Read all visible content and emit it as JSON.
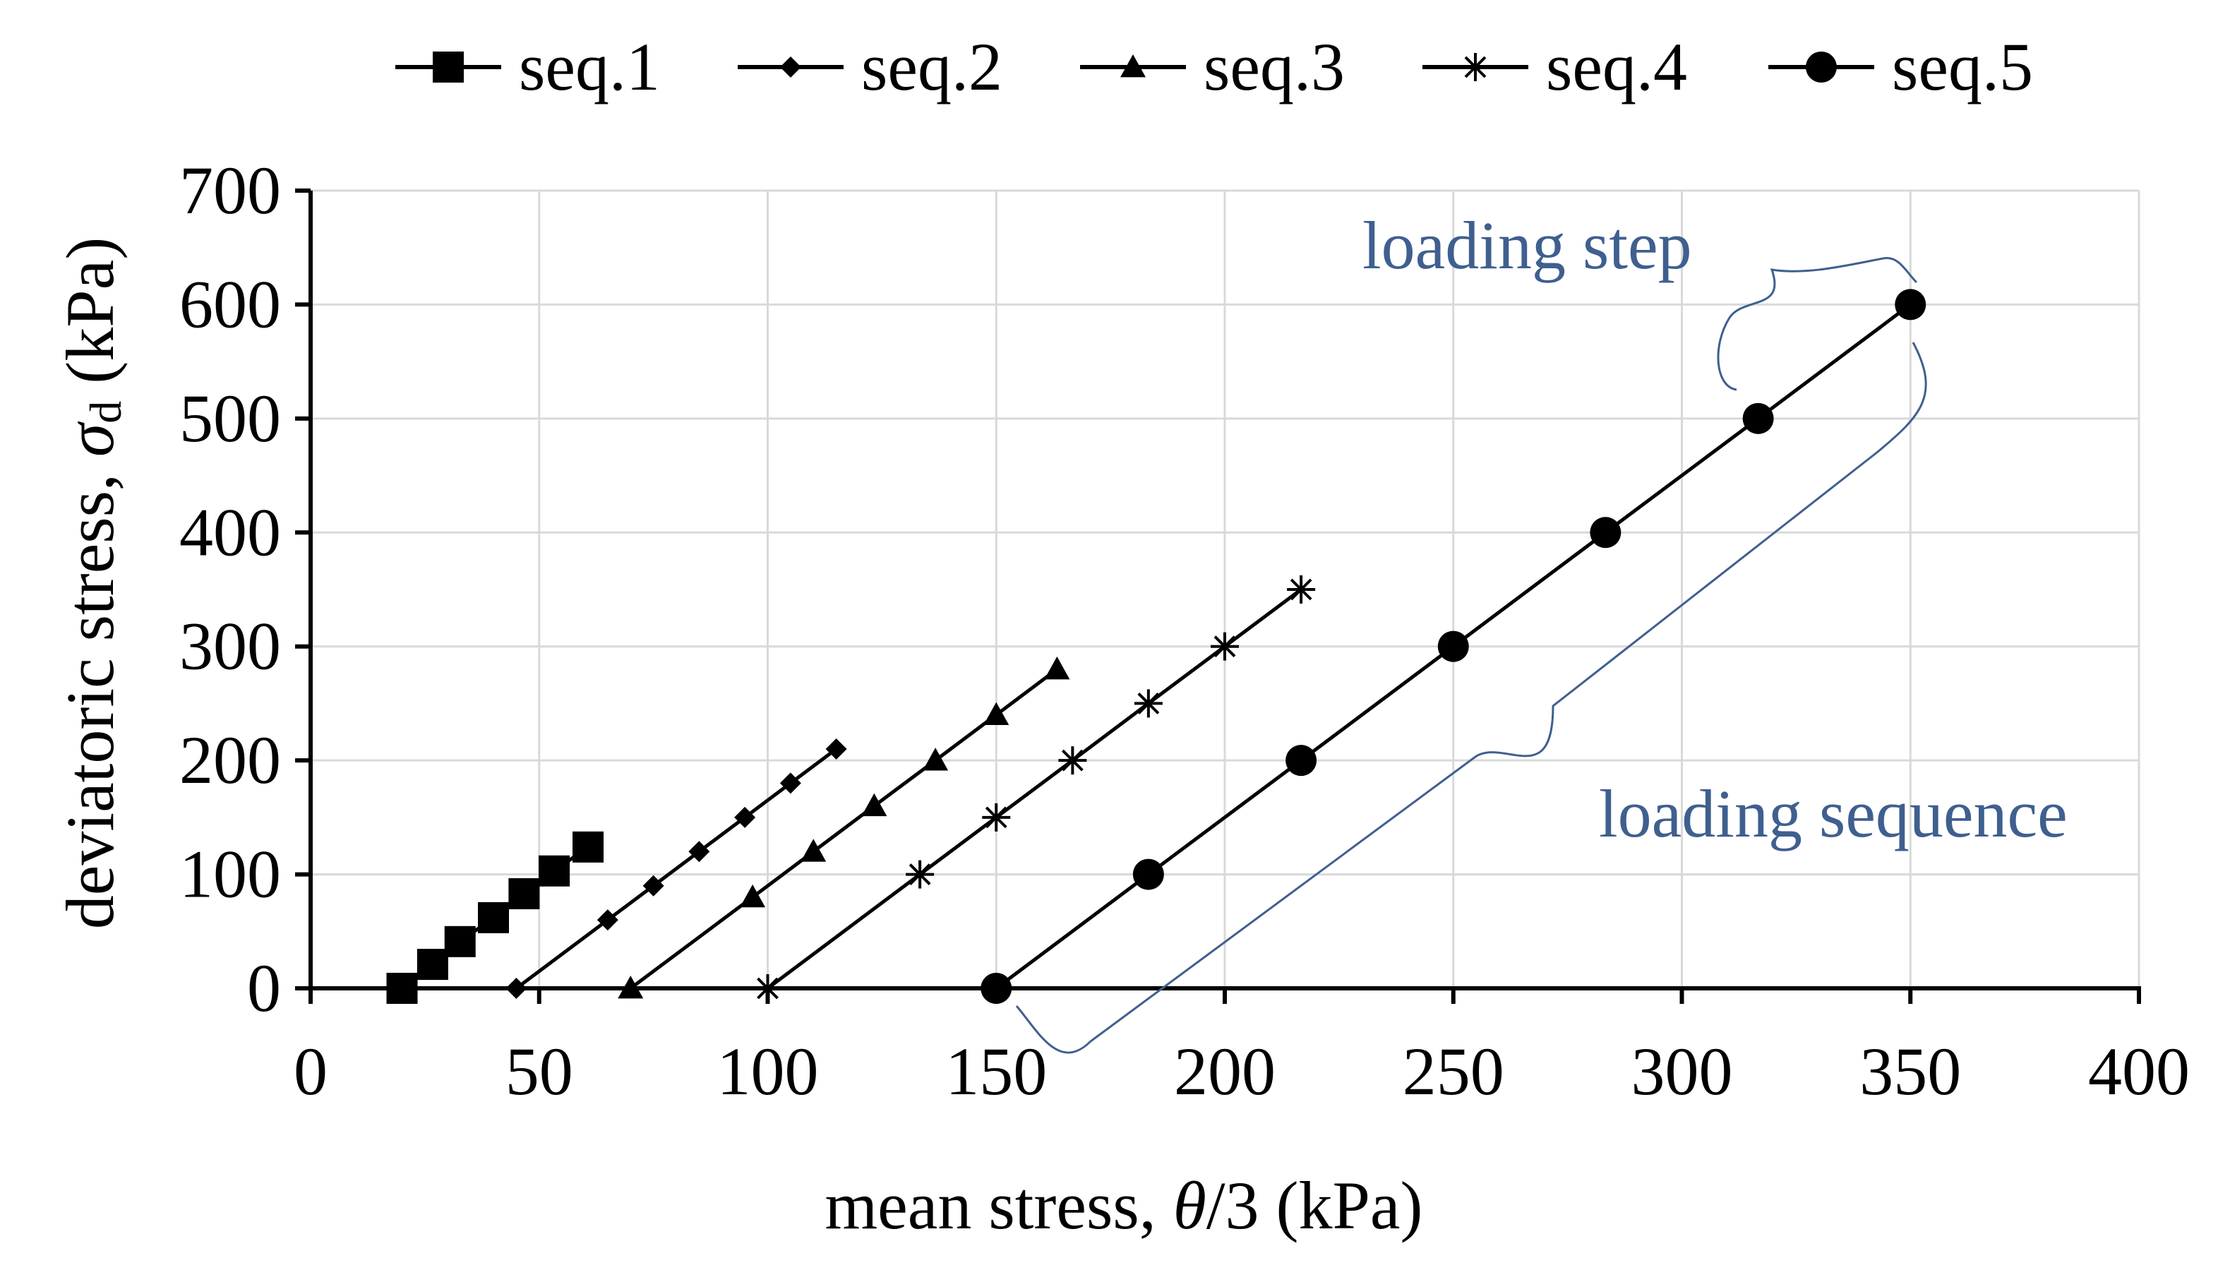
{
  "chart_data": {
    "type": "line",
    "title": "",
    "xlabel_text": "mean stress, ",
    "xlabel_symbol": "θ",
    "xlabel_suffix": "/3 (kPa)",
    "ylabel_text": "deviatoric stress, ",
    "ylabel_symbol": "σ",
    "ylabel_subscript": "d",
    "ylabel_suffix": " (kPa)",
    "xlim": [
      0,
      400
    ],
    "ylim": [
      0,
      700
    ],
    "x_ticks": [
      0,
      50,
      100,
      150,
      200,
      250,
      300,
      350,
      400
    ],
    "y_ticks": [
      0,
      100,
      200,
      300,
      400,
      500,
      600,
      700
    ],
    "x_tick_labels": [
      "0",
      "50",
      "100",
      "150",
      "200",
      "250",
      "300",
      "350",
      "400"
    ],
    "y_tick_labels": [
      "0",
      "100",
      "200",
      "300",
      "400",
      "500",
      "600",
      "700"
    ],
    "grid": true,
    "legend_position": "top",
    "series": [
      {
        "name": "seq.1",
        "marker": "square",
        "x": [
          20,
          26.7,
          32.7,
          40,
          46.7,
          53.3,
          60.7
        ],
        "y": [
          0,
          21,
          41,
          62,
          83,
          103,
          124
        ]
      },
      {
        "name": "seq.2",
        "marker": "diamond",
        "x": [
          45,
          65,
          75,
          85,
          95,
          105,
          115
        ],
        "y": [
          0,
          60,
          90,
          120,
          150,
          180,
          210
        ]
      },
      {
        "name": "seq.3",
        "marker": "triangle",
        "x": [
          70,
          96.7,
          110,
          123.3,
          136.7,
          150,
          163.3
        ],
        "y": [
          0,
          80,
          120,
          160,
          200,
          240,
          280
        ]
      },
      {
        "name": "seq.4",
        "marker": "asterisk",
        "x": [
          100,
          133.3,
          150,
          166.7,
          183.3,
          200,
          216.7
        ],
        "y": [
          0,
          100,
          150,
          200,
          250,
          300,
          350
        ]
      },
      {
        "name": "seq.5",
        "marker": "circle",
        "x": [
          150,
          183.3,
          216.7,
          250,
          283.3,
          316.7,
          350
        ],
        "y": [
          0,
          100,
          200,
          300,
          400,
          500,
          600
        ]
      }
    ],
    "annotations": [
      {
        "id": "step",
        "text": "loading step"
      },
      {
        "id": "sequence",
        "text": "loading sequence"
      }
    ]
  },
  "colors": {
    "series": "#000000",
    "annotation": "#3f5f8f",
    "grid": "#d9d9d9"
  }
}
